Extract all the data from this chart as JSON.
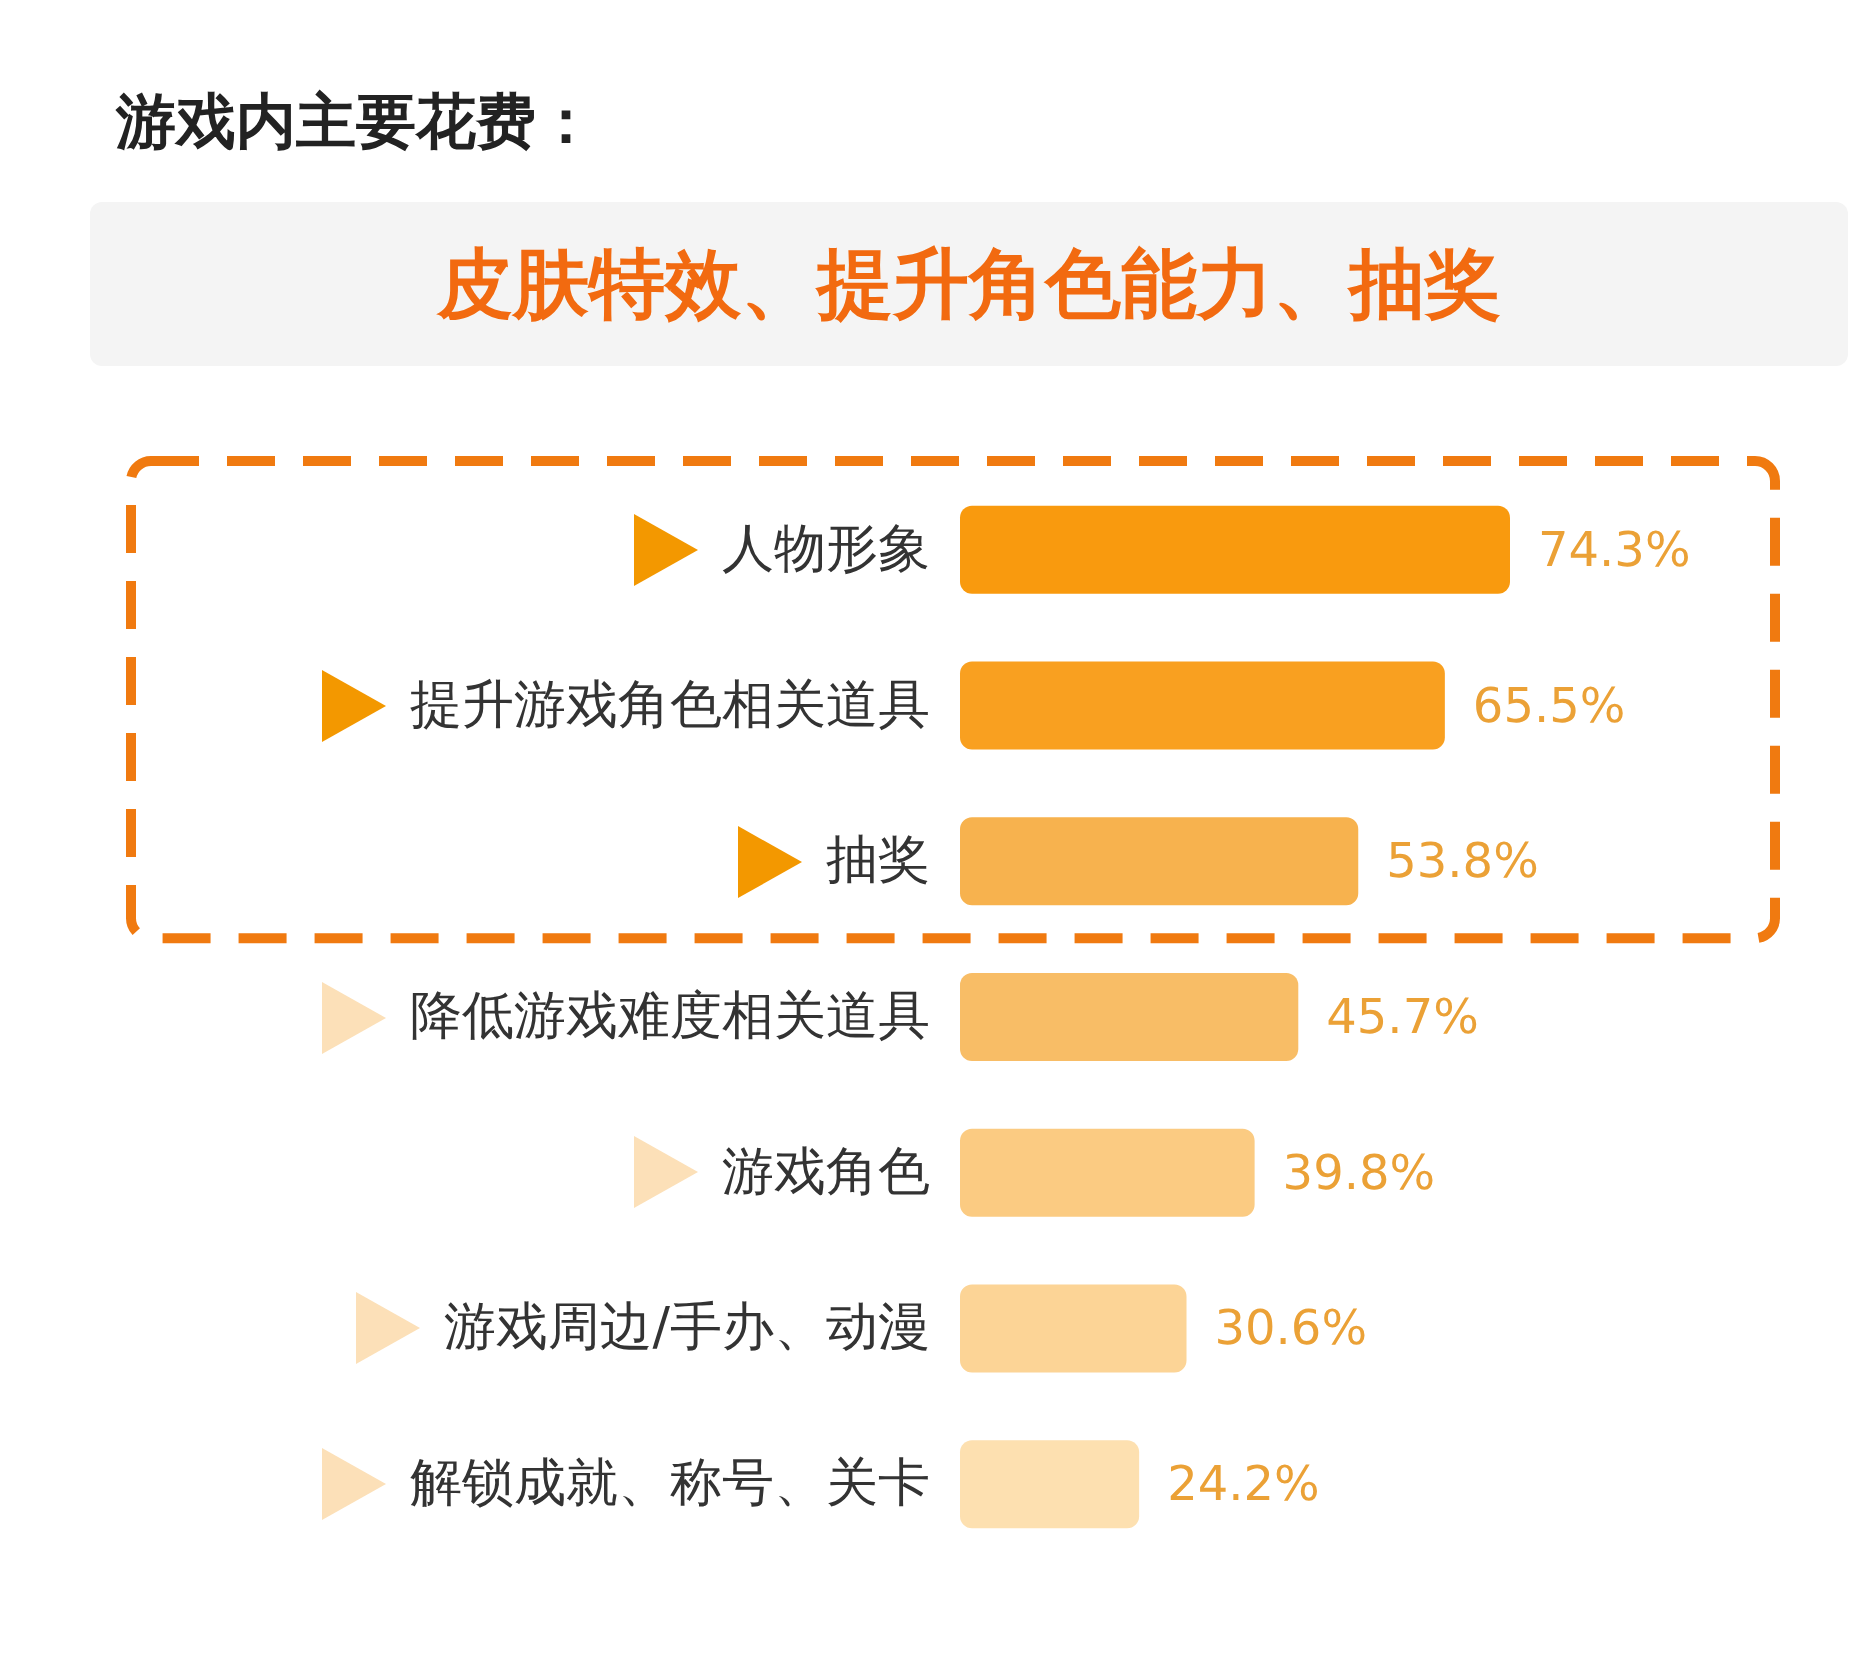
{
  "chart_data": {
    "type": "bar",
    "orientation": "horizontal",
    "title": "游戏内主要花费：",
    "subtitle": "皮肤特效、提升角色能力、抽奖",
    "categories": [
      "人物形象",
      "提升游戏角色相关道具",
      "抽奖",
      "降低游戏难度相关道具",
      "游戏角色",
      "游戏周边/手办、动漫",
      "解锁成就、称号、关卡"
    ],
    "values": [
      74.3,
      65.5,
      53.8,
      45.7,
      39.8,
      30.6,
      24.2
    ],
    "colors": [
      "#f99a0e",
      "#f9a020",
      "#f7b24e",
      "#f8bd66",
      "#fbcb82",
      "#fcd496",
      "#fde0b0"
    ],
    "value_labels": [
      "74.3%",
      "65.5%",
      "53.8%",
      "45.7%",
      "39.8%",
      "30.6%",
      "24.2%"
    ]
  }
}
